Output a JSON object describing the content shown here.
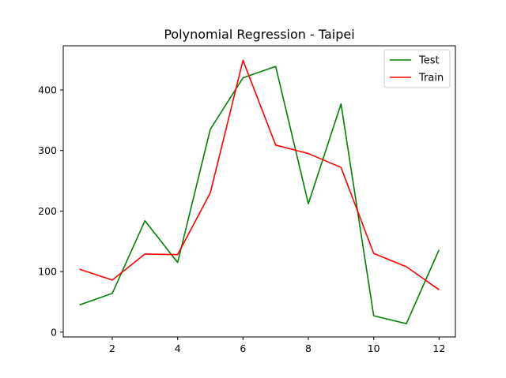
{
  "chart_data": {
    "type": "line",
    "title": "Polynomial Regression - Taipei",
    "xlabel": "",
    "ylabel": "",
    "x": [
      1,
      2,
      3,
      4,
      5,
      6,
      7,
      8,
      9,
      10,
      11,
      12
    ],
    "xlim": [
      0.5,
      12.5
    ],
    "ylim": [
      -8,
      473
    ],
    "xticks": [
      2,
      4,
      6,
      8,
      10,
      12
    ],
    "yticks": [
      0,
      100,
      200,
      300,
      400
    ],
    "grid": false,
    "legend_position": "top-right",
    "series": [
      {
        "name": "Test",
        "color": "#008000",
        "values": [
          45,
          64,
          184,
          115,
          335,
          420,
          439,
          212,
          377,
          27,
          14,
          136
        ]
      },
      {
        "name": "Train",
        "color": "#ff0000",
        "values": [
          104,
          86,
          129,
          128,
          230,
          449,
          309,
          295,
          272,
          130,
          108,
          70
        ]
      }
    ]
  }
}
